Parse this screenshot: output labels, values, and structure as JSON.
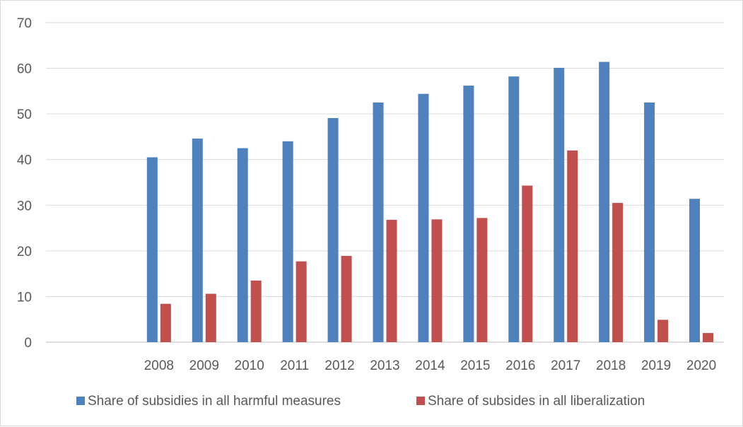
{
  "chart_data": {
    "type": "bar",
    "title": "",
    "xlabel": "",
    "ylabel": "",
    "ylim": [
      0,
      70
    ],
    "yticks": [
      0,
      10,
      20,
      30,
      40,
      50,
      60,
      70
    ],
    "grid": "horizontal",
    "legend_position": "bottom",
    "categories": [
      "",
      "",
      "2008",
      "2009",
      "2010",
      "2011",
      "2012",
      "2013",
      "2014",
      "2015",
      "2016",
      "2017",
      "2018",
      "2019",
      "2020"
    ],
    "series": [
      {
        "name": "Share of subsidies in all harmful measures",
        "color": "#4f81bd",
        "values": [
          null,
          null,
          40.5,
          44.6,
          42.5,
          44.0,
          49.1,
          52.5,
          54.4,
          56.2,
          58.2,
          60.1,
          61.4,
          52.5,
          31.4
        ]
      },
      {
        "name": "Share of subsides in all liberalization",
        "color": "#c0504d",
        "values": [
          null,
          null,
          8.4,
          10.6,
          13.5,
          17.7,
          18.9,
          26.8,
          26.9,
          27.2,
          34.3,
          42.0,
          30.5,
          4.9,
          2.0
        ]
      }
    ]
  }
}
